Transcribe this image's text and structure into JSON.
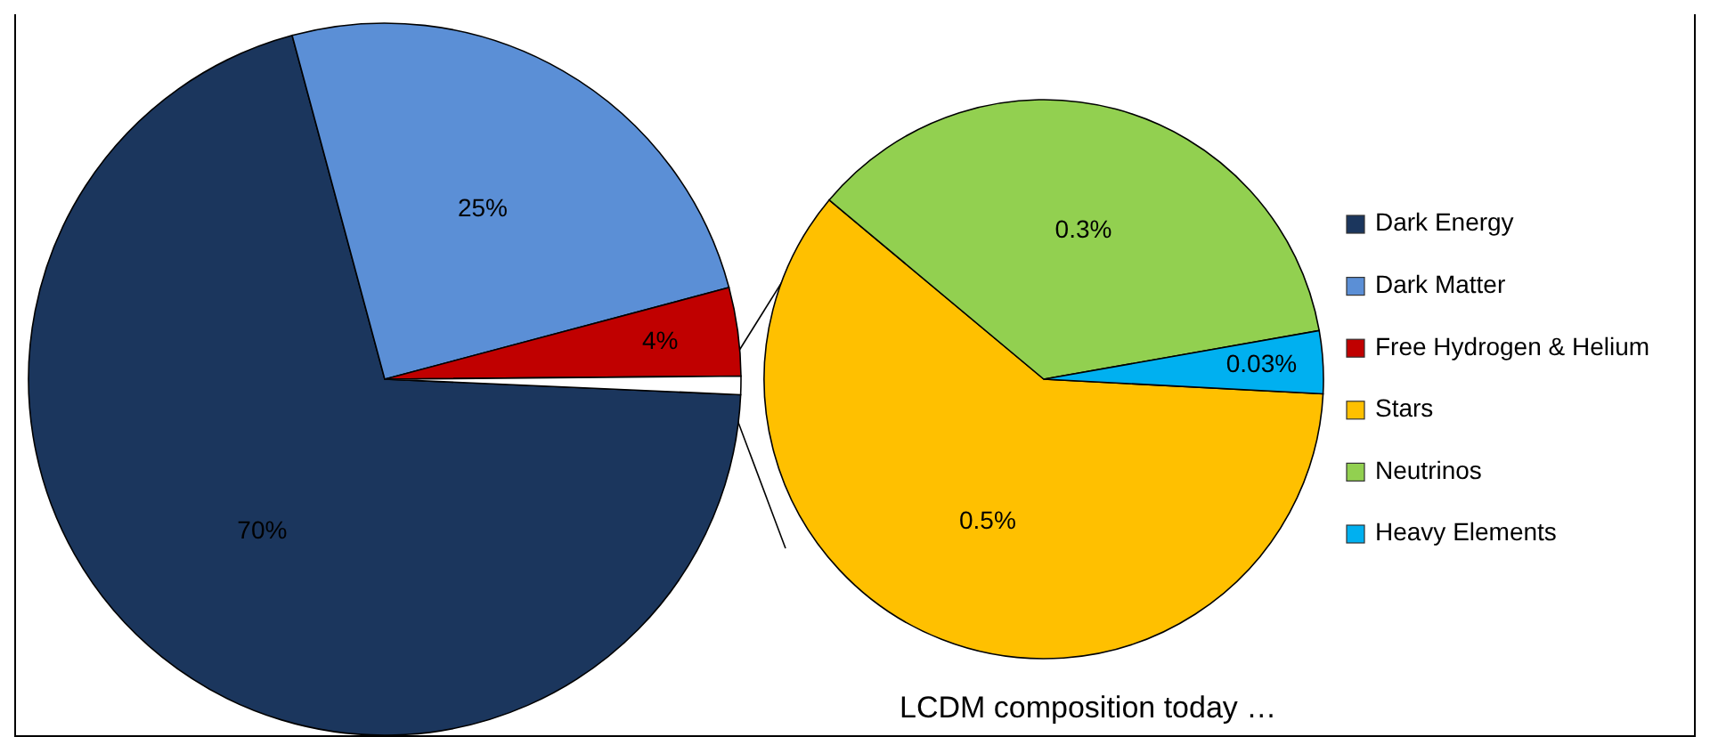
{
  "chart_data": [
    {
      "type": "pie",
      "categories": [
        "Dark Energy",
        "Dark Matter",
        "Free Hydrogen & Helium",
        null
      ],
      "values": [
        70,
        25,
        4,
        0.83
      ],
      "colors": [
        "#1b365d",
        "#5b8fd6",
        "#c00000",
        "#ffffff"
      ],
      "value_labels": [
        "70%",
        "25%",
        "4%",
        null
      ],
      "legend": "right"
    },
    {
      "type": "pie",
      "categories": [
        "Stars",
        "Neutrinos",
        "Heavy Elements"
      ],
      "values": [
        0.5,
        0.3,
        0.03
      ],
      "colors": [
        "#ffc000",
        "#92d050",
        "#00b0f0"
      ],
      "value_labels": [
        "0.5%",
        "0.3%",
        "0.03%"
      ],
      "legend": "right",
      "annotations": [
        "LCDM composition today …"
      ]
    }
  ]
}
